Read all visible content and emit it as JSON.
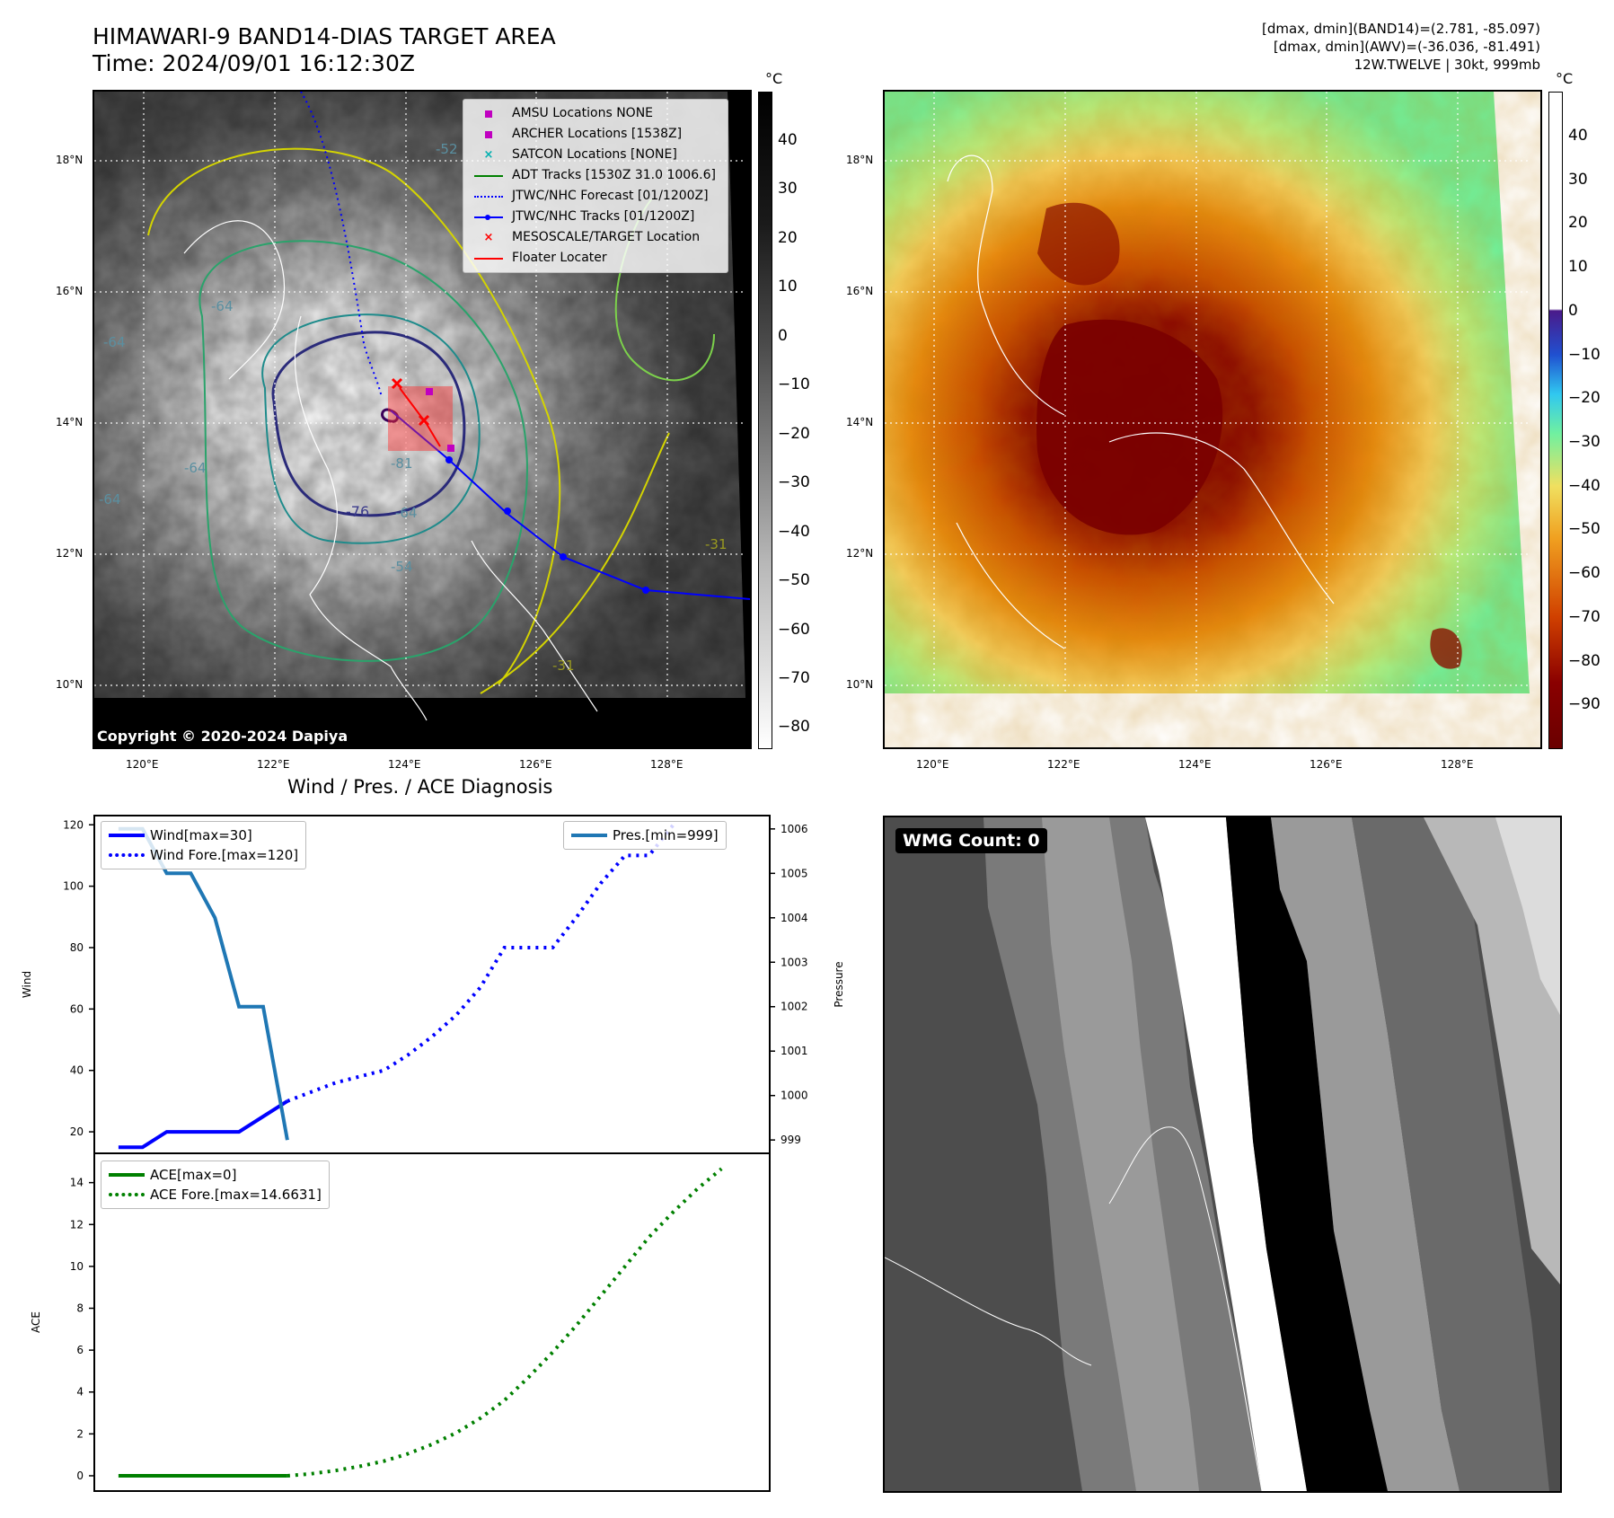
{
  "header": {
    "title_line1": "HIMAWARI-9 BAND14-DIAS TARGET AREA",
    "title_line2": "Time: 2024/09/01 16:12:30Z",
    "info_line1": "[dmax, dmin](BAND14)=(2.781, -85.097)",
    "info_line2": "[dmax, dmin](AWV)=(-36.036, -81.491)",
    "info_line3": "12W.TWELVE | 30kt, 999mb"
  },
  "map_axes": {
    "lon_ticks": [
      "120°E",
      "122°E",
      "124°E",
      "126°E",
      "128°E"
    ],
    "lat_ticks": [
      "18°N",
      "16°N",
      "14°N",
      "12°N",
      "10°N"
    ],
    "colorbar_unit": "°C"
  },
  "ir_panel": {
    "legend": [
      {
        "label": "AMSU Locations NONE",
        "symbol": "square",
        "color": "#c000c0"
      },
      {
        "label": "ARCHER Locations [1538Z]",
        "symbol": "square",
        "color": "#c000c0"
      },
      {
        "label": "SATCON Locations [NONE]",
        "symbol": "x",
        "color": "#00b0b0"
      },
      {
        "label": "ADT Tracks [1530Z 31.0 1006.6]",
        "symbol": "line",
        "color": "#008000"
      },
      {
        "label": "JTWC/NHC Forecast [01/1200Z]",
        "symbol": "dotted",
        "color": "#0000ff"
      },
      {
        "label": "JTWC/NHC Tracks [01/1200Z]",
        "symbol": "line-dot",
        "color": "#0000ff"
      },
      {
        "label": "MESOSCALE/TARGET Location",
        "symbol": "x",
        "color": "#ff0000"
      },
      {
        "label": "Floater Locater",
        "symbol": "line",
        "color": "#ff0000"
      }
    ],
    "contour_labels": [
      "-64",
      "-64",
      "-64",
      "-76",
      "-64",
      "-54",
      "-31",
      "-31",
      "-81",
      "-64",
      "-52"
    ],
    "copyright": "Copyright © 2020-2024 Dapiya",
    "colorbar_ticks": [
      "40",
      "30",
      "20",
      "10",
      "0",
      "−10",
      "−20",
      "−30",
      "−40",
      "−50",
      "−60",
      "−70",
      "−80"
    ],
    "colorbar_range": [
      -85,
      48
    ]
  },
  "awv_panel": {
    "colorbar_ticks": [
      "40",
      "30",
      "20",
      "10",
      "0",
      "−10",
      "−20",
      "−30",
      "−40",
      "−50",
      "−60",
      "−70",
      "−80",
      "−90"
    ],
    "colorbar_range": [
      -100,
      50
    ]
  },
  "diag_title": "Wind / Pres. / ACE Diagnosis",
  "chart_data": [
    {
      "type": "line",
      "title": "Wind / Pres. / ACE Diagnosis",
      "ylabel": "Wind",
      "y2label": "Pressure",
      "ylim": [
        13,
        123
      ],
      "y2lim": [
        998.7,
        1006.3
      ],
      "xlim": [
        -1,
        27
      ],
      "yticks": [
        120,
        100,
        80,
        60,
        40,
        20
      ],
      "y2ticks": [
        1006,
        1005,
        1004,
        1003,
        1002,
        1001,
        1000,
        999
      ],
      "series": [
        {
          "name": "Wind[max=30]",
          "axis": "left",
          "style": "solid",
          "color": "#0000ff",
          "x": [
            0,
            1,
            2,
            3,
            4,
            5,
            6,
            7
          ],
          "values": [
            15,
            15,
            20,
            20,
            20,
            20,
            25,
            30
          ]
        },
        {
          "name": "Wind Fore.[max=120]",
          "axis": "left",
          "style": "dotted",
          "color": "#0000ff",
          "x": [
            7,
            8,
            9,
            10,
            11,
            12,
            13,
            14,
            15,
            16,
            17,
            18,
            19,
            20,
            21,
            22,
            23
          ],
          "values": [
            30,
            33,
            36,
            38,
            40,
            45,
            51,
            58,
            67,
            80,
            80,
            80,
            90,
            101,
            110,
            110,
            120
          ]
        },
        {
          "name": "Pres.[min=999]",
          "axis": "right",
          "style": "solid",
          "color": "#1f77b4",
          "x": [
            0,
            1,
            2,
            3,
            4,
            5,
            6,
            7
          ],
          "values": [
            1006,
            1006,
            1005,
            1005,
            1004,
            1002,
            1002,
            999
          ]
        }
      ]
    },
    {
      "type": "line",
      "ylabel": "ACE",
      "ylim": [
        -0.73,
        15.4
      ],
      "xlim": [
        -1,
        27
      ],
      "yticks": [
        14,
        12,
        10,
        8,
        6,
        4,
        2,
        0
      ],
      "series": [
        {
          "name": "ACE[max=0]",
          "style": "solid",
          "color": "#008000",
          "x": [
            0,
            1,
            2,
            3,
            4,
            5,
            6,
            7
          ],
          "values": [
            0,
            0,
            0,
            0,
            0,
            0,
            0,
            0
          ]
        },
        {
          "name": "ACE Fore.[max=14.6631]",
          "style": "dotted",
          "color": "#008000",
          "x": [
            7,
            8,
            9,
            10,
            11,
            12,
            13,
            14,
            15,
            16,
            17,
            18,
            19,
            20,
            21,
            22,
            23,
            24,
            25
          ],
          "values": [
            0,
            0.1,
            0.25,
            0.45,
            0.7,
            1.05,
            1.5,
            2.05,
            2.75,
            3.6,
            4.7,
            5.9,
            7.2,
            8.6,
            10.0,
            11.4,
            12.6,
            13.7,
            14.66
          ]
        }
      ]
    }
  ],
  "wmg_panel": {
    "badge": "WMG Count: 0"
  }
}
